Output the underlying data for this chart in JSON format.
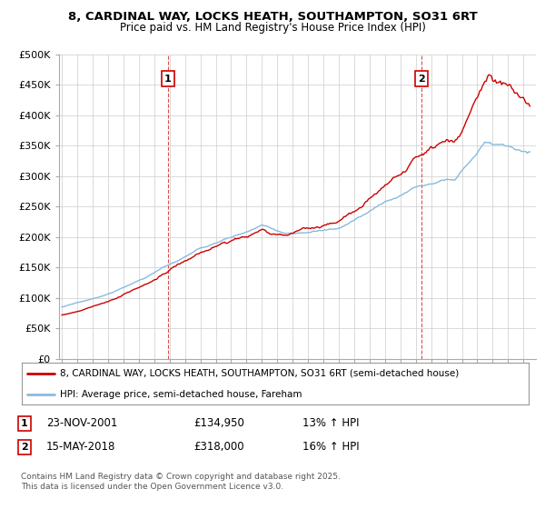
{
  "title_line1": "8, CARDINAL WAY, LOCKS HEATH, SOUTHAMPTON, SO31 6RT",
  "title_line2": "Price paid vs. HM Land Registry's House Price Index (HPI)",
  "legend_line1": "8, CARDINAL WAY, LOCKS HEATH, SOUTHAMPTON, SO31 6RT (semi-detached house)",
  "legend_line2": "HPI: Average price, semi-detached house, Fareham",
  "footnote": "Contains HM Land Registry data © Crown copyright and database right 2025.\nThis data is licensed under the Open Government Licence v3.0.",
  "marker1_label": "1",
  "marker1_date": "23-NOV-2001",
  "marker1_price": "£134,950",
  "marker1_hpi": "13% ↑ HPI",
  "marker1_x": 2001.9,
  "marker2_label": "2",
  "marker2_date": "15-MAY-2018",
  "marker2_price": "£318,000",
  "marker2_hpi": "16% ↑ HPI",
  "marker2_x": 2018.37,
  "price_color": "#cc0000",
  "hpi_color": "#88bbdd",
  "ylim_min": 0,
  "ylim_max": 500000,
  "xlim_min": 1994.8,
  "xlim_max": 2025.8,
  "background_color": "#ffffff",
  "grid_color": "#cccccc",
  "marker_box_color": "#cc0000"
}
